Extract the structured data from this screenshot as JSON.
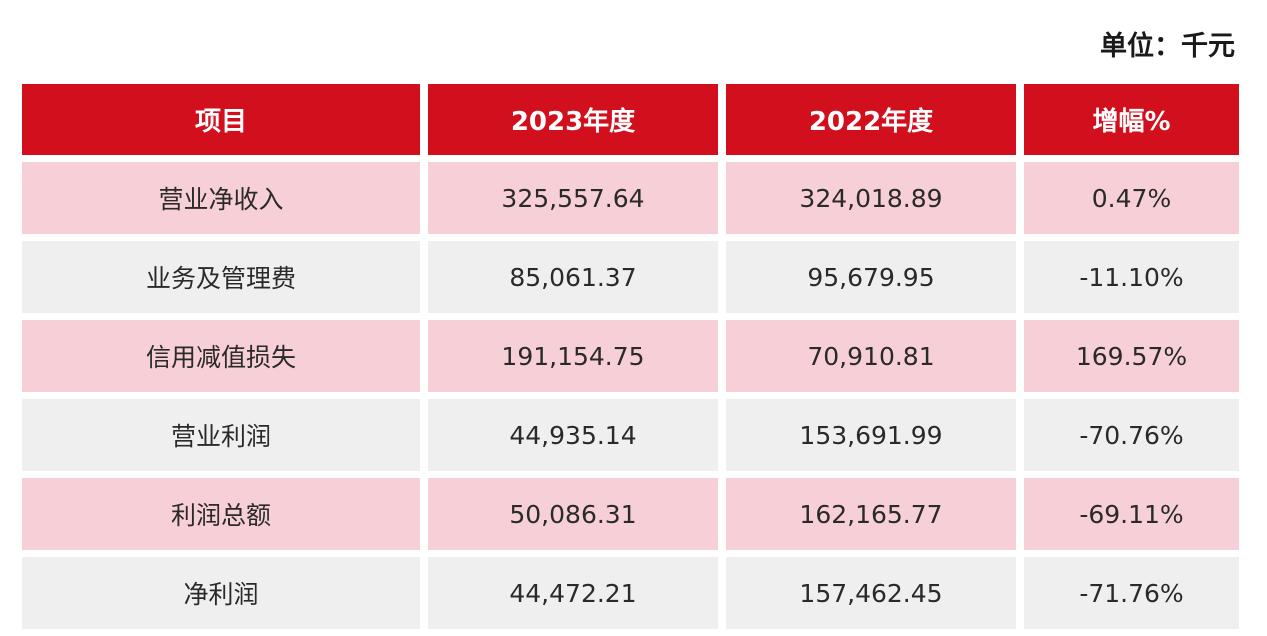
{
  "unit_label": "单位：千元",
  "colors": {
    "header_bg": "#d20f1d",
    "row_pink": "#f7cfd6",
    "row_gray": "#efefef"
  },
  "table": {
    "headers": [
      "项目",
      "2023年度",
      "2022年度",
      "增幅%"
    ],
    "rows": [
      [
        "营业净收入",
        "325,557.64",
        "324,018.89",
        "0.47%"
      ],
      [
        "业务及管理费",
        "85,061.37",
        "95,679.95",
        "-11.10%"
      ],
      [
        "信用减值损失",
        "191,154.75",
        "70,910.81",
        "169.57%"
      ],
      [
        "营业利润",
        "44,935.14",
        "153,691.99",
        "-70.76%"
      ],
      [
        "利润总额",
        "50,086.31",
        "162,165.77",
        "-69.11%"
      ],
      [
        "净利润",
        "44,472.21",
        "157,462.45",
        "-71.76%"
      ]
    ]
  }
}
